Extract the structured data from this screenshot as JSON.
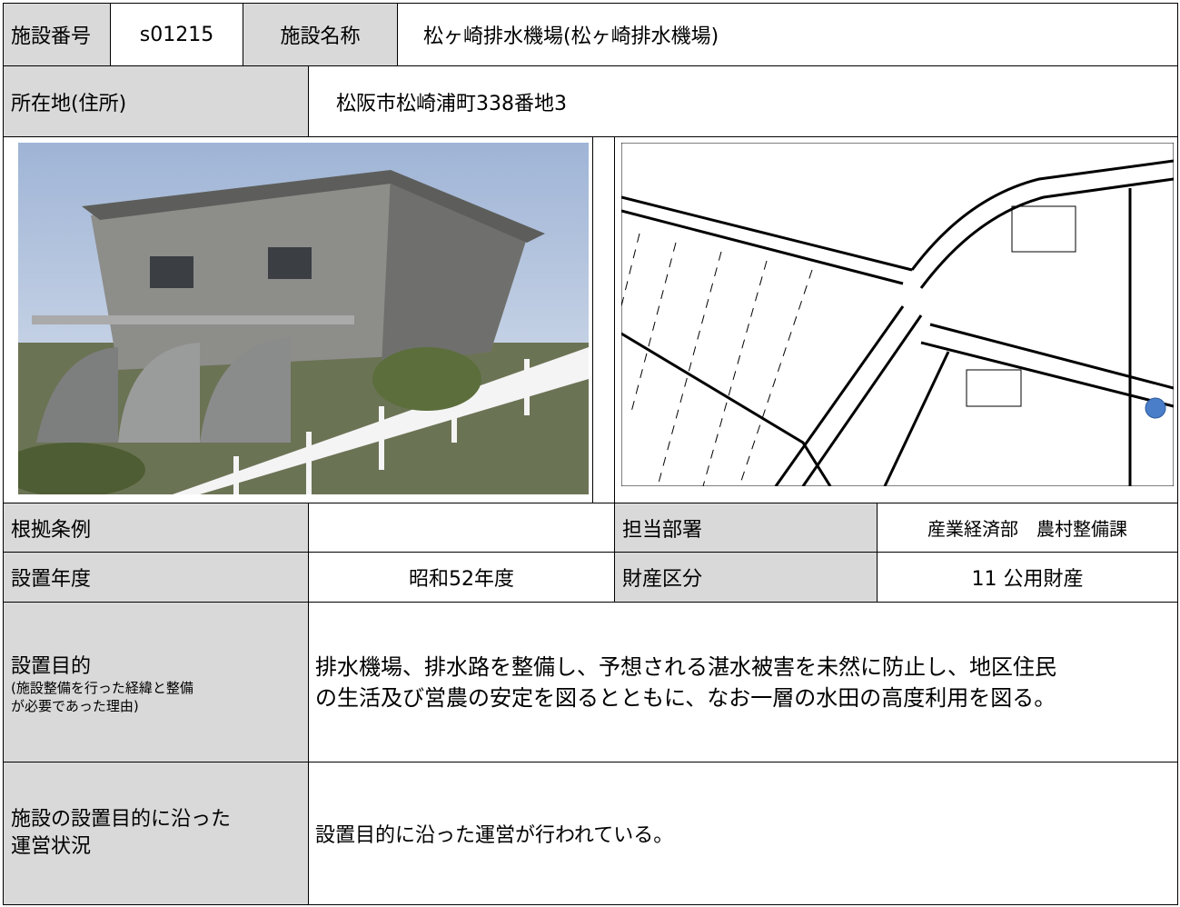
{
  "facility": {
    "id_label": "施設番号",
    "id": "s01215",
    "name_label": "施設名称",
    "name": "松ヶ崎排水機場(松ヶ崎排水機場)",
    "address_label": "所在地(住所)",
    "address": "松阪市松崎浦町338番地3",
    "ordinance_label": "根拠条例",
    "department_label": "担当部署",
    "department": "産業経済部　農村整備課",
    "established_label": "設置年度",
    "established": "昭和52年度",
    "property_label": "財産区分",
    "property_class": "11 公用財産"
  },
  "purpose": {
    "label": "設置目的",
    "note": [
      "(施設整備を行った経緯と整備",
      "が必要であった理由)"
    ],
    "text": [
      "排水機場、排水路を整備し、予想される湛水被害を未然に防止し、地区住民",
      "の生活及び営農の安定を図るとともに、なお一層の水田の高度利用を図る。"
    ]
  },
  "operation": {
    "label": [
      "施設の設置目的に沿った",
      "運営状況"
    ],
    "text": "設置目的に沿った運営が行われている。"
  }
}
